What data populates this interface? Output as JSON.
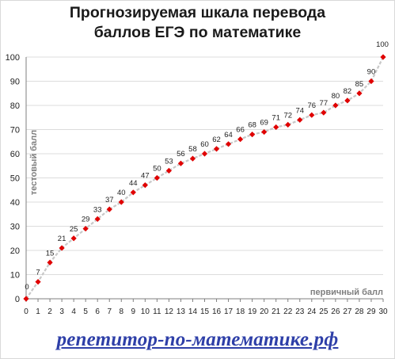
{
  "title": {
    "line1": "Прогнозируемая шкала перевода",
    "line2": "баллов ЕГЭ по математике"
  },
  "footer": {
    "site": "репетитор-по-математике.рф"
  },
  "colors": {
    "point": "#e00000",
    "line": "#c8c8c8",
    "grid": "#dcdcdc",
    "axis_label": "#7f7f7f",
    "footer": "#2e3fa8"
  },
  "chart_data": {
    "type": "line",
    "xlabel": "первичный балл",
    "ylabel": "тестовый балл",
    "xlim": [
      0,
      30
    ],
    "ylim": [
      0,
      100
    ],
    "x_ticks": [
      0,
      1,
      2,
      3,
      4,
      5,
      6,
      7,
      8,
      9,
      10,
      11,
      12,
      13,
      14,
      15,
      16,
      17,
      18,
      19,
      20,
      21,
      22,
      23,
      24,
      25,
      26,
      27,
      28,
      29,
      30
    ],
    "y_ticks": [
      0,
      10,
      20,
      30,
      40,
      50,
      60,
      70,
      80,
      90,
      100
    ],
    "grid": {
      "horizontal": true,
      "vertical": false
    },
    "marker": "diamond",
    "line_style": "dashed",
    "series": [
      {
        "x": [
          0,
          1,
          2,
          3,
          4,
          5,
          6,
          7,
          8,
          9,
          10,
          11,
          12,
          13,
          14,
          15,
          16,
          17,
          18,
          19,
          20,
          21,
          22,
          23,
          24,
          25,
          26,
          27,
          28,
          29,
          30
        ],
        "values": [
          0,
          7,
          15,
          21,
          25,
          29,
          33,
          37,
          40,
          44,
          47,
          50,
          53,
          56,
          58,
          60,
          62,
          64,
          66,
          68,
          69,
          71,
          72,
          74,
          76,
          77,
          80,
          82,
          85,
          90,
          100
        ],
        "data_labels": [
          "0",
          "7",
          "15",
          "21",
          "25",
          "29",
          "33",
          "37",
          "40",
          "44",
          "47",
          "50",
          "53",
          "56",
          "58",
          "60",
          "62",
          "64",
          "66",
          "68",
          "69",
          "71",
          "72",
          "74",
          "76",
          "77",
          "80",
          "82",
          "85",
          "90",
          "100"
        ]
      }
    ]
  }
}
